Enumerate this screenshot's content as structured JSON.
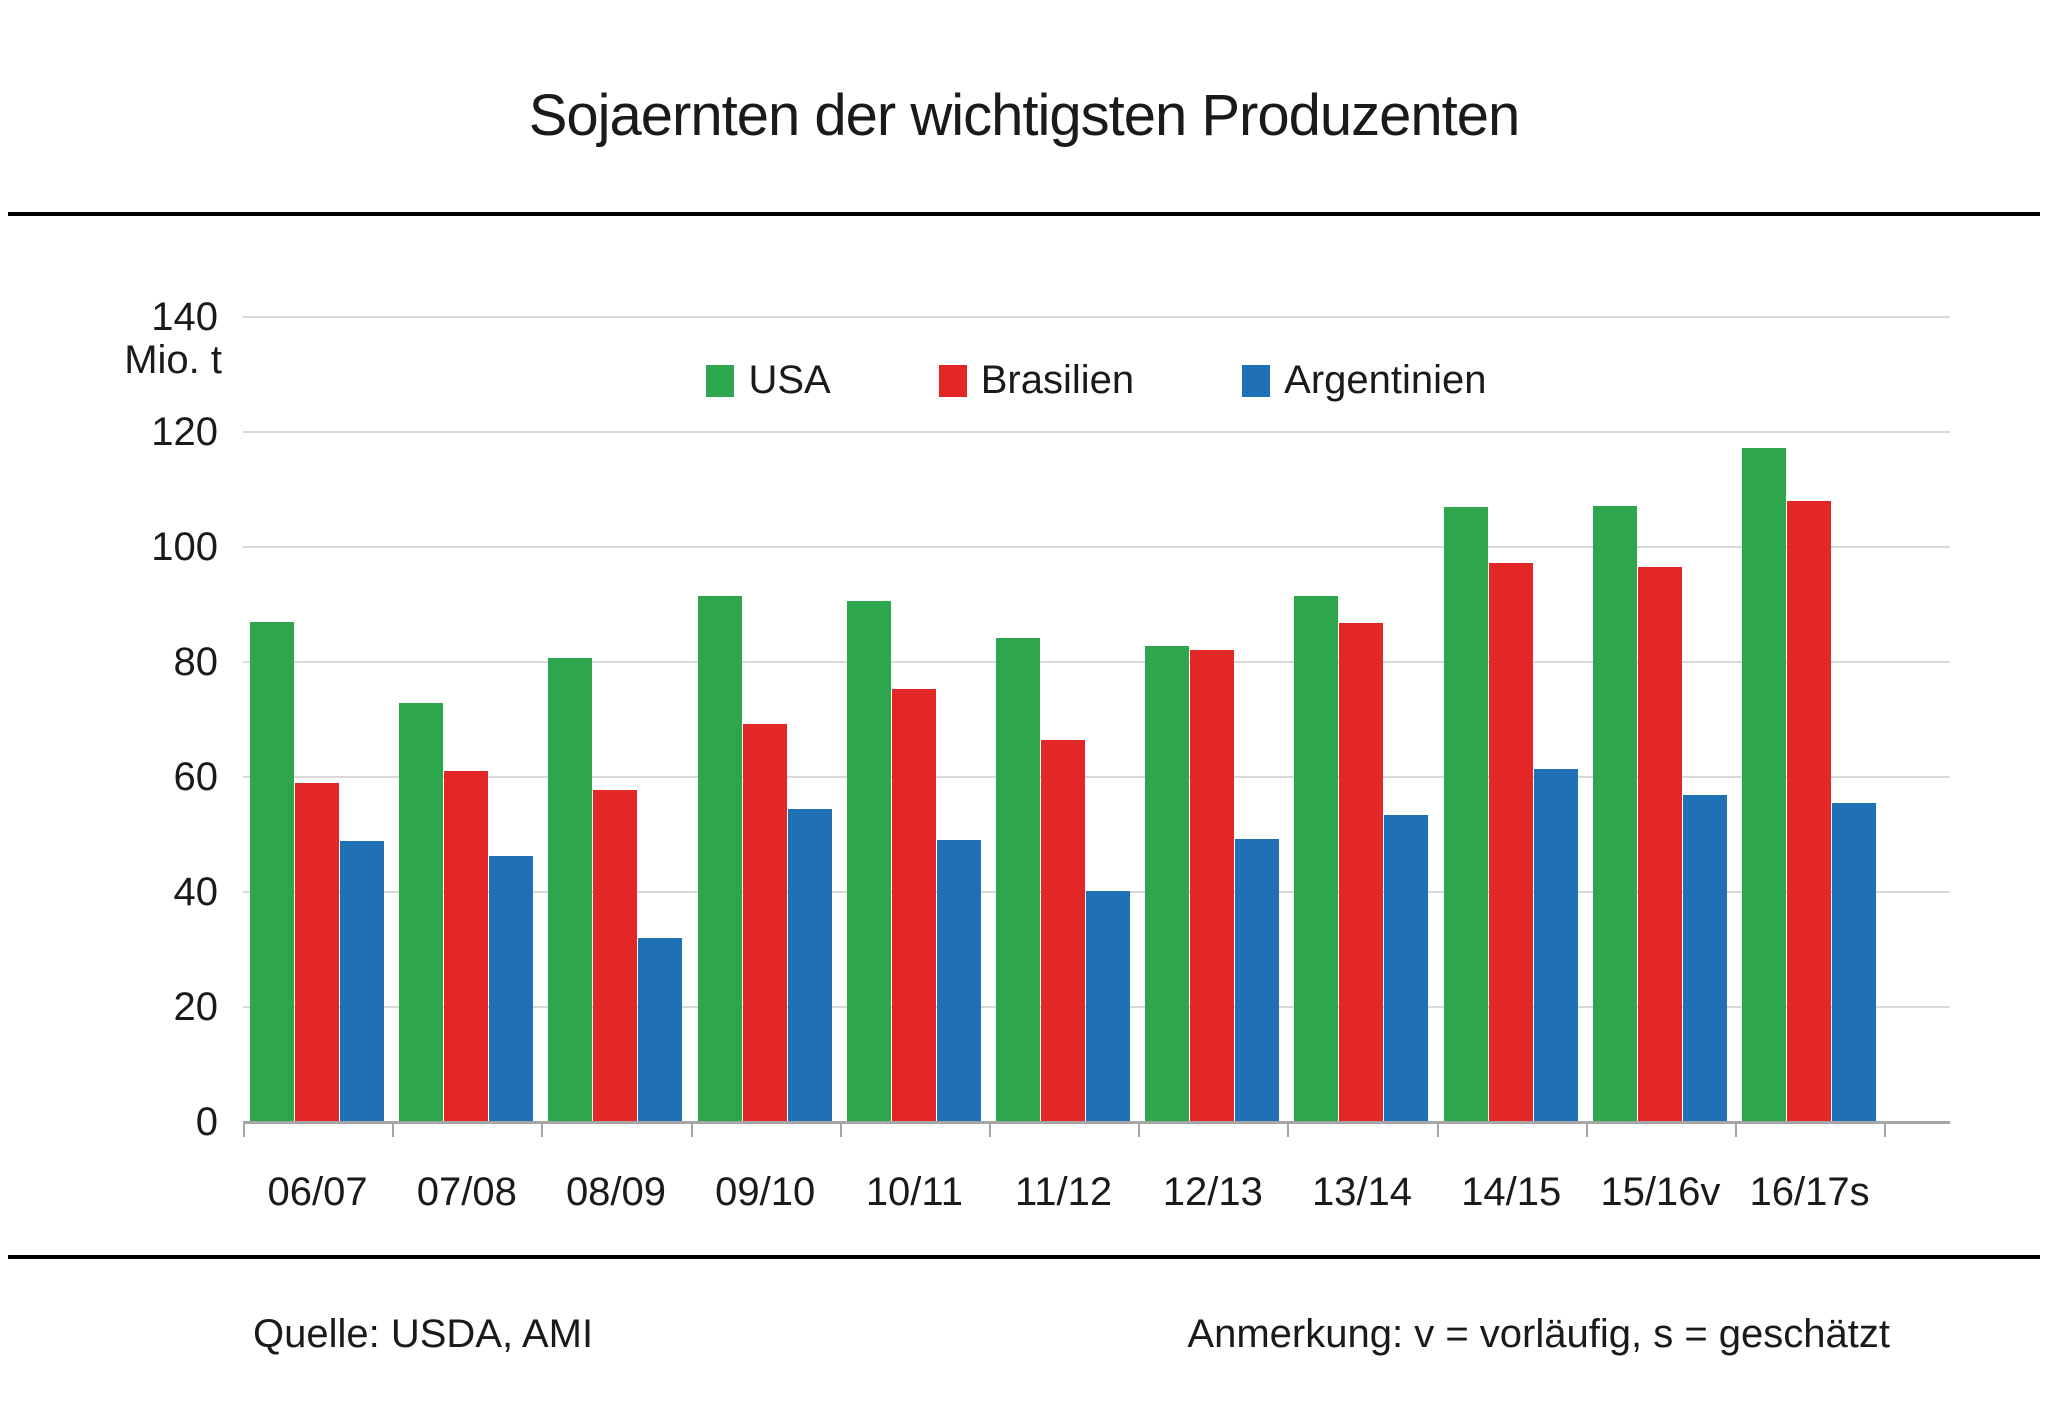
{
  "header": {
    "title": "Sojaernten der wichtigsten Produzenten"
  },
  "footer": {
    "source": "Quelle: USDA, AMI",
    "note": "Anmerkung: v = vorläufig, s = geschätzt"
  },
  "colors": {
    "usa": "#2EA64D",
    "brasilien": "#E32726",
    "argentinien": "#1F70B5",
    "gridline": "#D9D9D9",
    "axis": "#A6A6A6",
    "text": "#1A1A1A",
    "rule": "#000000"
  },
  "chart_data": {
    "type": "bar",
    "title": "Sojaernten der wichtigsten Produzenten",
    "xlabel": "",
    "ylabel": "Mio. t",
    "ylim": [
      0,
      140
    ],
    "ytick_step": 20,
    "grid": true,
    "legend_position": "top-center",
    "categories": [
      "06/07",
      "07/08",
      "08/09",
      "09/10",
      "10/11",
      "11/12",
      "12/13",
      "13/14",
      "14/15",
      "15/16v",
      "16/17s"
    ],
    "series": [
      {
        "name": "USA",
        "color": "#2EA64D",
        "values": [
          86.9,
          72.9,
          80.7,
          91.4,
          90.6,
          84.2,
          82.8,
          91.4,
          106.9,
          107.1,
          117.2
        ]
      },
      {
        "name": "Brasilien",
        "color": "#E32726",
        "values": [
          59.0,
          61.0,
          57.8,
          69.2,
          75.3,
          66.5,
          82.1,
          86.7,
          97.2,
          96.5,
          108.0
        ]
      },
      {
        "name": "Argentinien",
        "color": "#1F70B5",
        "values": [
          48.8,
          46.2,
          32.0,
          54.5,
          49.0,
          40.1,
          49.3,
          53.4,
          61.4,
          56.8,
          55.5
        ]
      }
    ],
    "source": "Quelle: USDA, AMI",
    "note": "Anmerkung: v = vorläufig, s = geschätzt"
  }
}
